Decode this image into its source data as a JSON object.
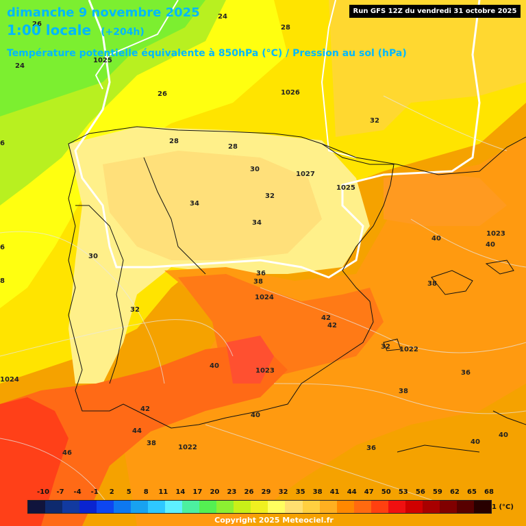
{
  "title": {
    "date": "dimanche 9 novembre 2025",
    "time": "1:00 locale",
    "lead": "(+204h)",
    "subtitle": "Température potentielle équivalente à 850hPa (°C) / Pression au sol (hPa)",
    "run": "Run GFS 12Z du vendredi 31 octobre 2025"
  },
  "legend": {
    "ticks": [
      "-10",
      "-7",
      "-4",
      "-1",
      "2",
      "5",
      "8",
      "11",
      "14",
      "17",
      "20",
      "23",
      "26",
      "29",
      "32",
      "35",
      "38",
      "41",
      "44",
      "47",
      "50",
      "53",
      "56",
      "59",
      "62",
      "65",
      "68"
    ],
    "colors": [
      "#10143c",
      "#0e2a6e",
      "#123aa0",
      "#0a24d0",
      "#0e46f0",
      "#0e78f0",
      "#18a2f0",
      "#2ec8ff",
      "#5ef0ff",
      "#4cf0a0",
      "#54f052",
      "#8cf032",
      "#c8f018",
      "#f0f020",
      "#ffff60",
      "#ffe070",
      "#ffd040",
      "#ffb020",
      "#ff8800",
      "#ff6a10",
      "#ff4010",
      "#f01010",
      "#d00000",
      "#a80000",
      "#800000",
      "#580000",
      "#280000"
    ],
    "unit": "(°C)"
  },
  "labels": [
    "24",
    "28",
    "26",
    "1025",
    "24",
    "1026",
    "26",
    "32",
    "28",
    "28",
    "30",
    "1027",
    "1025",
    "32",
    "34",
    "34",
    "40",
    "1023",
    "40",
    "36",
    "38",
    "38",
    "1024",
    "42",
    "42",
    "32",
    "30",
    "32",
    "1022",
    "40",
    "1023",
    "36",
    "38",
    "1024",
    "40",
    "42",
    "44",
    "46",
    "38",
    "1022",
    "36",
    "40",
    "40",
    "6",
    "6",
    "8"
  ],
  "icon": "cyclone-legend-icon",
  "copyright": "Copyright 2025 Meteociel.fr"
}
